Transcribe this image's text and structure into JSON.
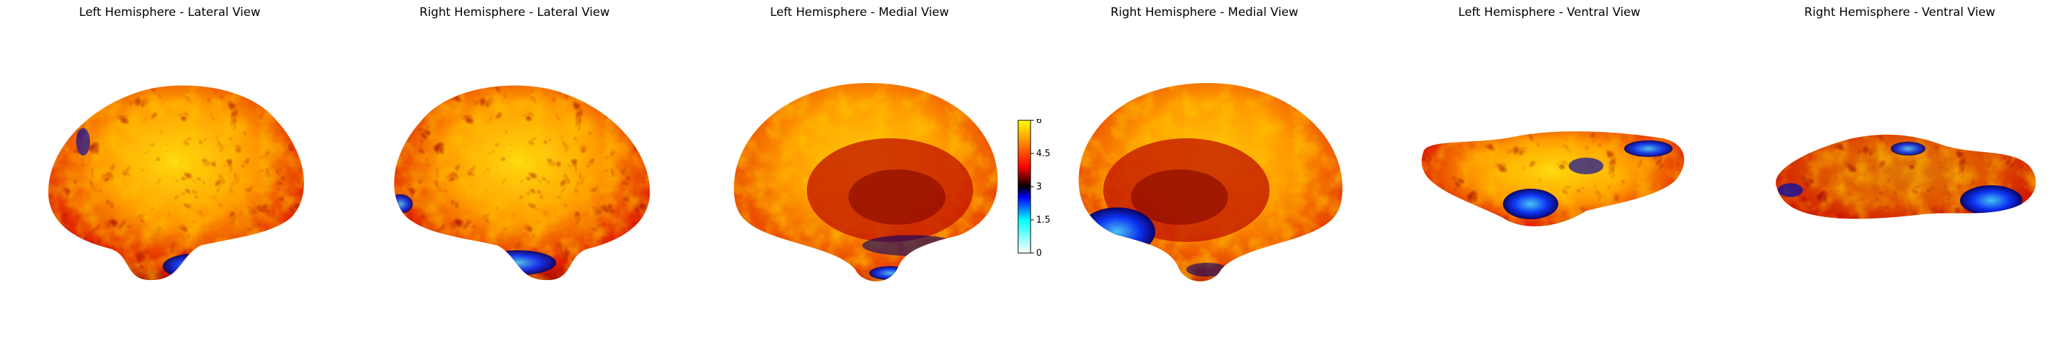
{
  "titles": {
    "lh_lateral": "Left Hemisphere - Lateral View",
    "rh_lateral": "Right Hemisphere - Lateral View",
    "lh_medial": "Left Hemisphere - Medial View",
    "rh_medial": "Right Hemisphere - Medial View",
    "lh_ventral": "Left Hemisphere - Ventral View",
    "rh_ventral": "Right Hemisphere - Ventral View"
  },
  "colorbar": {
    "ticks": [
      "6",
      "4.5",
      "3",
      "1.5",
      "0"
    ],
    "range": [
      0,
      6
    ],
    "colormap": "cold_hot",
    "colors": [
      "#ffffff",
      "#00ffff",
      "#0000ff",
      "#000000",
      "#ff0000",
      "#ffff00"
    ]
  }
}
